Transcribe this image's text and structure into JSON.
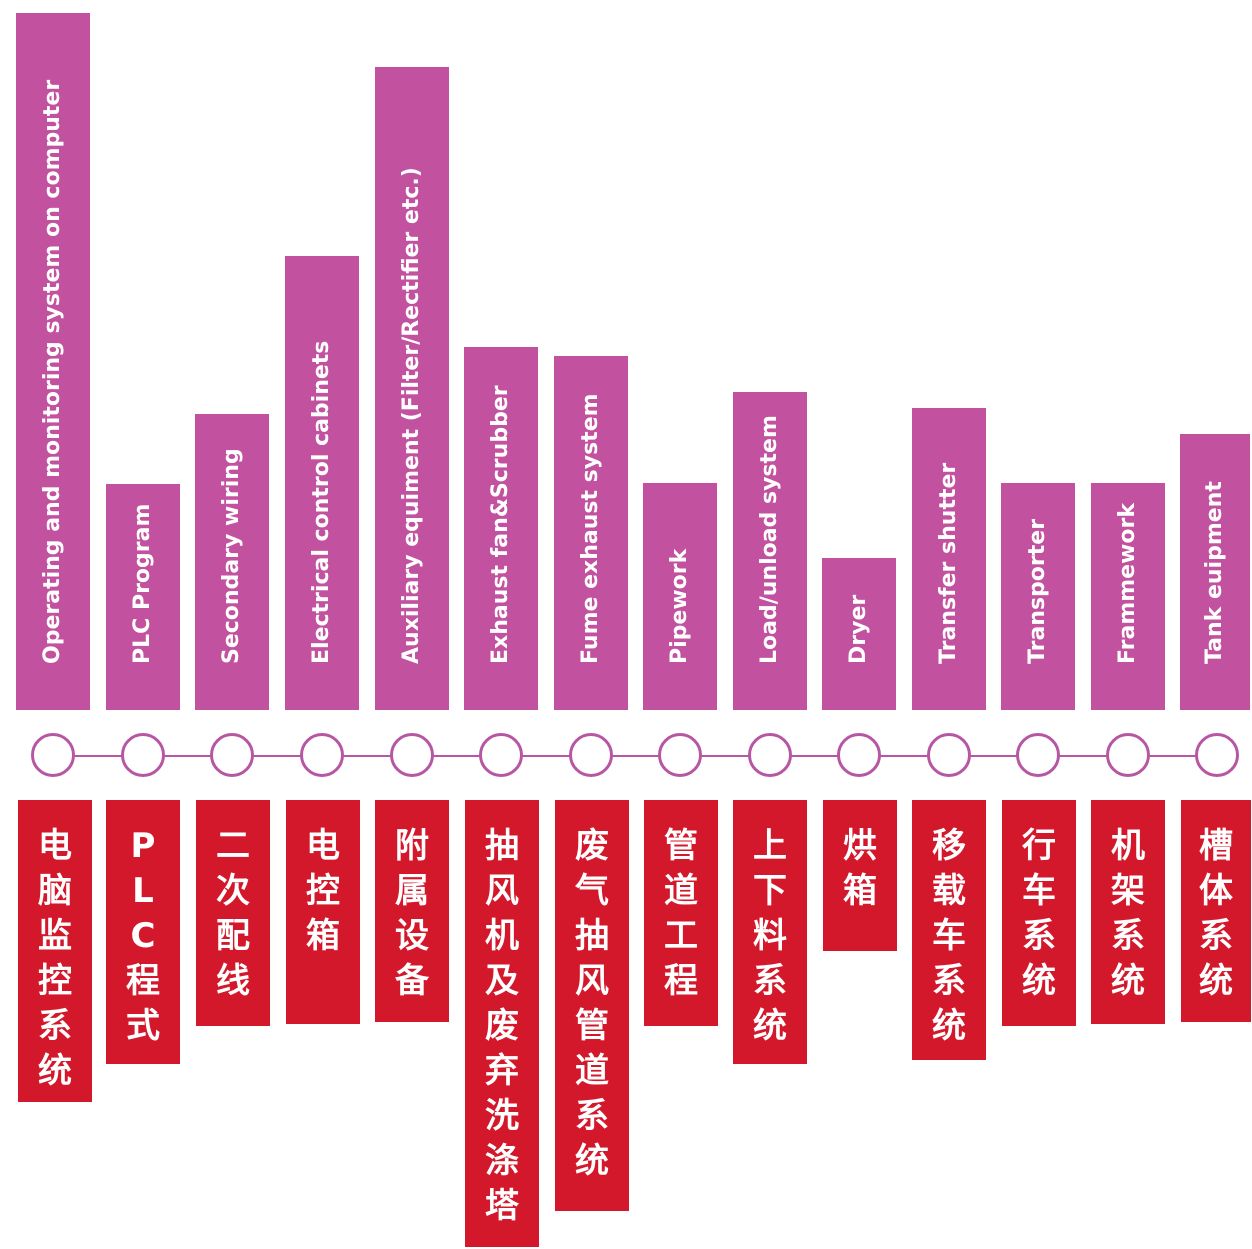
{
  "colors": {
    "top": "#c2519f",
    "bottom": "#d4182b",
    "node": "#b757a4"
  },
  "items": [
    {
      "en": "Operating and monitoring system on computer",
      "zh": "电脑监控系统"
    },
    {
      "en": "PLC Program",
      "zh": "PLC程式"
    },
    {
      "en": "Secondary wiring",
      "zh": "二次配线"
    },
    {
      "en": "Electrical control cabinets",
      "zh": "电控箱"
    },
    {
      "en": "Auxiliary equiment (Filter/Rectifier etc.)",
      "zh": "附属设备"
    },
    {
      "en": "Exhaust fan&Scrubber",
      "zh": "抽风机及废弃洗涤塔"
    },
    {
      "en": "Fume exhaust system",
      "zh": "废气抽风管道系统"
    },
    {
      "en": "Pipework",
      "zh": "管道工程"
    },
    {
      "en": "Load/unload system",
      "zh": "上下料系统"
    },
    {
      "en": "Dryer",
      "zh": "烘箱"
    },
    {
      "en": "Transfer shutter",
      "zh": "移载车系统"
    },
    {
      "en": "Transporter",
      "zh": "行车系统"
    },
    {
      "en": "Frammework",
      "zh": "机架系统"
    },
    {
      "en": "Tank euipment",
      "zh": "槽体系统"
    }
  ]
}
